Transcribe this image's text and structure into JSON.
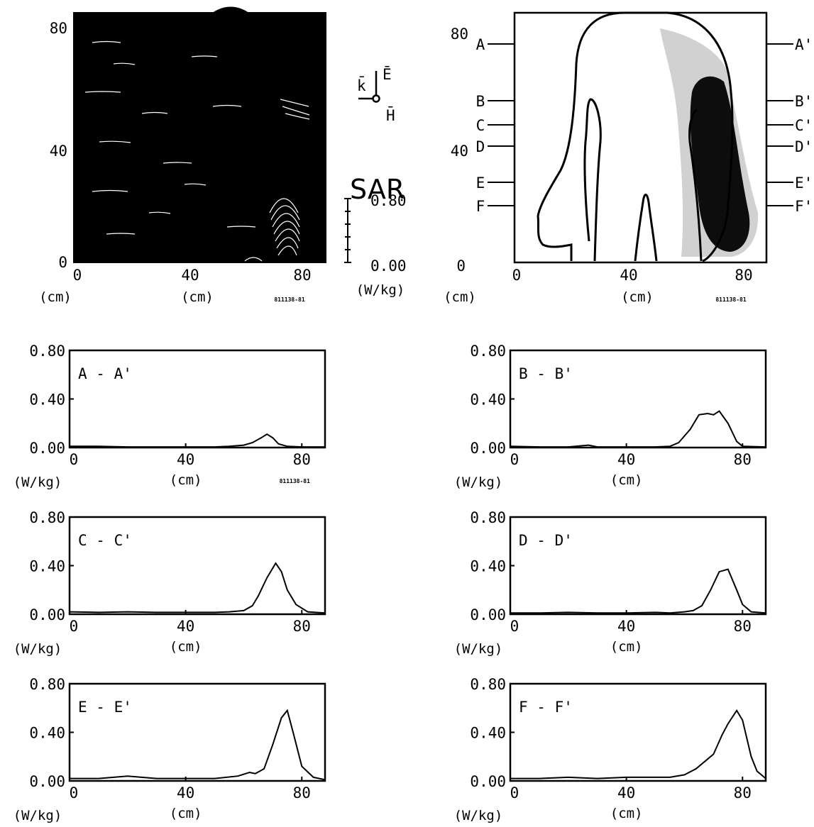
{
  "code": "811138-81",
  "colors": {
    "ink": "#000000",
    "paper": "#ffffff"
  },
  "top_left": {
    "y_ticks": [
      "0",
      "40",
      "80"
    ],
    "x_ticks": [
      "0",
      "40",
      "80"
    ],
    "xunit_left": "(cm)",
    "xunit_mid": "(cm)"
  },
  "legend": {
    "k": "k̄",
    "E": "Ē",
    "H": "H̄",
    "title": "SAR",
    "max": "0.80",
    "min": "0.00",
    "unit": "(W/kg)"
  },
  "top_right": {
    "y_ticks": [
      "0",
      "40",
      "80"
    ],
    "x_ticks": [
      "0",
      "40",
      "80"
    ],
    "xunit_left": "(cm)",
    "xunit_mid": "(cm)",
    "left_labels": [
      "A",
      "B",
      "C",
      "D",
      "E",
      "F"
    ],
    "right_labels": [
      "A'",
      "B'",
      "C'",
      "D'",
      "E'",
      "F'"
    ]
  },
  "chart_data": [
    {
      "type": "line",
      "title": "A - A'",
      "xlabel": "(cm)",
      "ylabel": "(W/kg)",
      "x_ticks": [
        "0",
        "40",
        "80"
      ],
      "y_ticks": [
        "0.00",
        "0.40",
        "0.80"
      ],
      "xlim": [
        0,
        88
      ],
      "ylim": [
        0,
        0.8
      ],
      "show_code": true,
      "x": [
        0,
        10,
        20,
        30,
        40,
        50,
        55,
        60,
        63,
        66,
        68,
        70,
        72,
        75,
        80,
        88
      ],
      "y": [
        0.01,
        0.01,
        0.005,
        0.005,
        0.005,
        0.005,
        0.01,
        0.02,
        0.04,
        0.08,
        0.11,
        0.08,
        0.03,
        0.01,
        0.005,
        0.005
      ]
    },
    {
      "type": "line",
      "title": "B - B'",
      "xlabel": "(cm)",
      "ylabel": "(W/kg)",
      "x_ticks": [
        "0",
        "40",
        "80"
      ],
      "y_ticks": [
        "0.00",
        "0.40",
        "0.80"
      ],
      "xlim": [
        0,
        88
      ],
      "ylim": [
        0,
        0.8
      ],
      "show_code": false,
      "x": [
        0,
        10,
        20,
        27,
        30,
        40,
        50,
        55,
        58,
        62,
        65,
        68,
        70,
        72,
        75,
        78,
        80,
        88
      ],
      "y": [
        0.01,
        0.005,
        0.005,
        0.02,
        0.005,
        0.005,
        0.005,
        0.01,
        0.04,
        0.15,
        0.27,
        0.28,
        0.27,
        0.3,
        0.2,
        0.05,
        0.01,
        0.005
      ]
    },
    {
      "type": "line",
      "title": "C - C'",
      "xlabel": "(cm)",
      "ylabel": "(W/kg)",
      "x_ticks": [
        "0",
        "40",
        "80"
      ],
      "y_ticks": [
        "0.00",
        "0.40",
        "0.80"
      ],
      "xlim": [
        0,
        88
      ],
      "ylim": [
        0,
        0.8
      ],
      "show_code": false,
      "x": [
        0,
        10,
        20,
        30,
        40,
        50,
        55,
        60,
        63,
        65,
        68,
        71,
        73,
        75,
        78,
        82,
        88
      ],
      "y": [
        0.02,
        0.015,
        0.02,
        0.015,
        0.015,
        0.015,
        0.02,
        0.03,
        0.07,
        0.15,
        0.3,
        0.42,
        0.35,
        0.2,
        0.08,
        0.02,
        0.01
      ]
    },
    {
      "type": "line",
      "title": "D - D'",
      "xlabel": "(cm)",
      "ylabel": "(W/kg)",
      "x_ticks": [
        "0",
        "40",
        "80"
      ],
      "y_ticks": [
        "0.00",
        "0.40",
        "0.80"
      ],
      "xlim": [
        0,
        88
      ],
      "ylim": [
        0,
        0.8
      ],
      "show_code": false,
      "x": [
        0,
        10,
        20,
        30,
        40,
        50,
        55,
        60,
        63,
        66,
        69,
        72,
        75,
        78,
        80,
        83,
        88
      ],
      "y": [
        0.01,
        0.01,
        0.015,
        0.01,
        0.01,
        0.015,
        0.01,
        0.02,
        0.03,
        0.07,
        0.2,
        0.35,
        0.37,
        0.2,
        0.08,
        0.02,
        0.01
      ]
    },
    {
      "type": "line",
      "title": "E - E'",
      "xlabel": "(cm)",
      "ylabel": "(W/kg)",
      "x_ticks": [
        "0",
        "40",
        "80"
      ],
      "y_ticks": [
        "0.00",
        "0.40",
        "0.80"
      ],
      "xlim": [
        0,
        88
      ],
      "ylim": [
        0,
        0.8
      ],
      "show_code": false,
      "x": [
        0,
        10,
        20,
        30,
        40,
        50,
        58,
        62,
        64,
        67,
        70,
        73,
        75,
        77,
        80,
        84,
        88
      ],
      "y": [
        0.02,
        0.02,
        0.04,
        0.02,
        0.02,
        0.02,
        0.04,
        0.07,
        0.06,
        0.1,
        0.3,
        0.52,
        0.58,
        0.4,
        0.12,
        0.03,
        0.01
      ]
    },
    {
      "type": "line",
      "title": "F - F'",
      "xlabel": "(cm)",
      "ylabel": "(W/kg)",
      "x_ticks": [
        "0",
        "40",
        "80"
      ],
      "y_ticks": [
        "0.00",
        "0.40",
        "0.80"
      ],
      "xlim": [
        0,
        88
      ],
      "ylim": [
        0,
        0.8
      ],
      "show_code": false,
      "x": [
        0,
        10,
        20,
        30,
        40,
        50,
        55,
        60,
        64,
        68,
        70,
        73,
        75,
        78,
        80,
        83,
        85,
        88
      ],
      "y": [
        0.02,
        0.02,
        0.03,
        0.02,
        0.03,
        0.03,
        0.03,
        0.05,
        0.1,
        0.18,
        0.22,
        0.38,
        0.47,
        0.58,
        0.5,
        0.2,
        0.08,
        0.02
      ]
    }
  ]
}
